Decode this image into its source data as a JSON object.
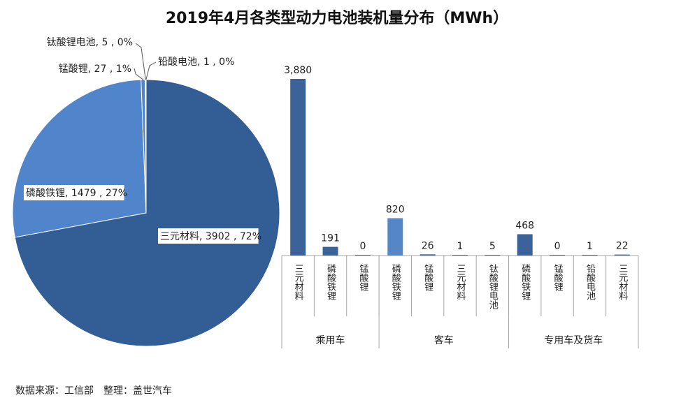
{
  "title": "2019年4月各类型动力电池装机量分布（MWh）",
  "source": "数据来源：工信部　整理：盖世汽车",
  "colors": {
    "pie_dark": "#325E95",
    "pie_light": "#5085CC",
    "bar": "#3C6399",
    "bar_light": "#5587C6",
    "axis": "#A6A6A6"
  },
  "chart_data": [
    {
      "type": "pie",
      "slices": [
        {
          "name": "三元材料",
          "value": 3902,
          "pct": "72%",
          "label": "三元材料, 3902 , 72%"
        },
        {
          "name": "磷酸铁锂",
          "value": 1479,
          "pct": "27%",
          "label": "磷酸铁锂, 1479 , 27%"
        },
        {
          "name": "锰酸锂",
          "value": 27,
          "pct": "1%",
          "label": "锰酸锂, 27 , 1%"
        },
        {
          "name": "钛酸锂电池",
          "value": 5,
          "pct": "0%",
          "label": "钛酸锂电池, 5 , 0%"
        },
        {
          "name": "铅酸电池",
          "value": 1,
          "pct": "0%",
          "label": "铅酸电池, 1 , 0%"
        }
      ]
    },
    {
      "type": "bar",
      "groups": [
        {
          "name": "乘用车",
          "items": [
            {
              "name": "三元材料",
              "value": 3880,
              "label": "3,880"
            },
            {
              "name": "磷酸铁锂",
              "value": 191,
              "label": "191"
            },
            {
              "name": "锰酸锂",
              "value": 0,
              "label": "0"
            }
          ]
        },
        {
          "name": "客车",
          "items": [
            {
              "name": "磷酸铁锂",
              "value": 820,
              "label": "820"
            },
            {
              "name": "锰酸锂",
              "value": 26,
              "label": "26"
            },
            {
              "name": "三元材料",
              "value": 1,
              "label": "1"
            },
            {
              "name": "钛酸锂电池",
              "value": 5,
              "label": "5"
            }
          ]
        },
        {
          "name": "专用车及货车",
          "items": [
            {
              "name": "磷酸铁锂",
              "value": 468,
              "label": "468"
            },
            {
              "name": "锰酸锂",
              "value": 0,
              "label": "0"
            },
            {
              "name": "铅酸电池",
              "value": 1,
              "label": "1"
            },
            {
              "name": "三元材料",
              "value": 22,
              "label": "22"
            }
          ]
        }
      ],
      "ylim": [
        0,
        3880
      ]
    }
  ]
}
